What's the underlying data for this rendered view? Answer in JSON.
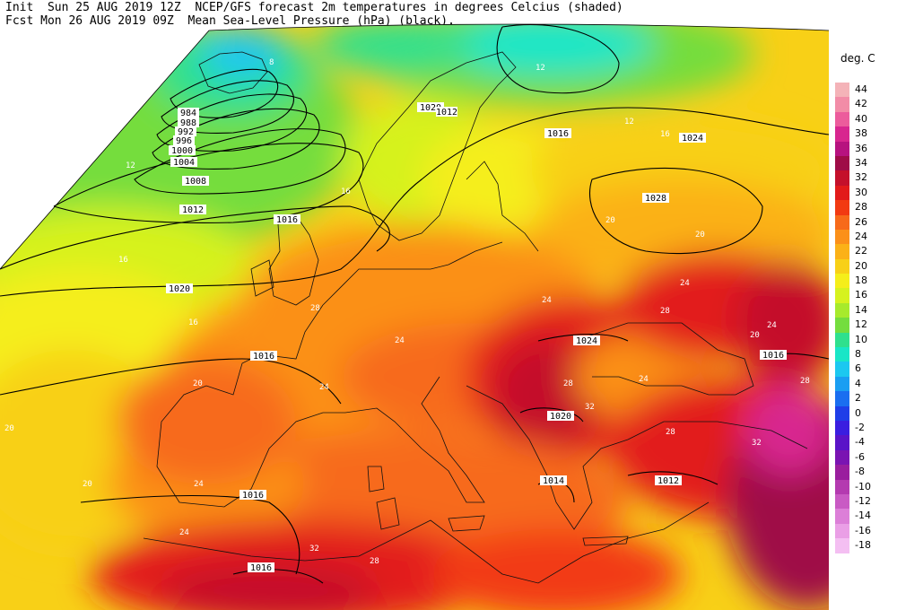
{
  "header": {
    "line1": "Init  Sun 25 AUG 2019 12Z  NCEP/GFS forecast 2m temperatures in degrees Celcius (shaded)",
    "line2": "Fcst Mon 26 AUG 2019 09Z  Mean Sea-Level Pressure (hPa) (black)."
  },
  "colorbar": {
    "unit": "deg. C",
    "entries": [
      {
        "label": "44",
        "color": "#f4b3b8"
      },
      {
        "label": "42",
        "color": "#f28ca7"
      },
      {
        "label": "40",
        "color": "#ec5c9c"
      },
      {
        "label": "38",
        "color": "#d8268f"
      },
      {
        "label": "36",
        "color": "#b7127f"
      },
      {
        "label": "34",
        "color": "#9f0c47"
      },
      {
        "label": "32",
        "color": "#c4102b"
      },
      {
        "label": "30",
        "color": "#e21a1a"
      },
      {
        "label": "28",
        "color": "#f23a12"
      },
      {
        "label": "26",
        "color": "#f76a1a"
      },
      {
        "label": "24",
        "color": "#fb9019"
      },
      {
        "label": "22",
        "color": "#fbb117"
      },
      {
        "label": "20",
        "color": "#f8d017"
      },
      {
        "label": "18",
        "color": "#f5ee1a"
      },
      {
        "label": "16",
        "color": "#d6f21f"
      },
      {
        "label": "14",
        "color": "#a7ea2c"
      },
      {
        "label": "12",
        "color": "#74dd3e"
      },
      {
        "label": "10",
        "color": "#2fe08e"
      },
      {
        "label": "8",
        "color": "#19e6c7"
      },
      {
        "label": "6",
        "color": "#1cc8f0"
      },
      {
        "label": "4",
        "color": "#1a9ef2"
      },
      {
        "label": "2",
        "color": "#1a6ef0"
      },
      {
        "label": "0",
        "color": "#1f3ee8"
      },
      {
        "label": "-2",
        "color": "#3a1ee0"
      },
      {
        "label": "-4",
        "color": "#5a14c8"
      },
      {
        "label": "-6",
        "color": "#7a14b2"
      },
      {
        "label": "-8",
        "color": "#9a1e9e"
      },
      {
        "label": "-10",
        "color": "#b43ab0"
      },
      {
        "label": "-12",
        "color": "#c95ac4"
      },
      {
        "label": "-14",
        "color": "#dc7fd8"
      },
      {
        "label": "-16",
        "color": "#ea9fe6"
      },
      {
        "label": "-18",
        "color": "#f4bff2"
      }
    ]
  },
  "map": {
    "pressure_labels": [
      "984",
      "988",
      "992",
      "996",
      "1000",
      "1004",
      "1008",
      "1012",
      "1016",
      "1020",
      "1020",
      "1016",
      "1024",
      "1028",
      "1024",
      "1016",
      "1016",
      "1020",
      "1016",
      "1012",
      "1014",
      "1012",
      "1016"
    ],
    "temperature_labels": [
      "8",
      "12",
      "12",
      "12",
      "16",
      "16",
      "16",
      "16",
      "20",
      "20",
      "20",
      "20",
      "20",
      "20",
      "24",
      "24",
      "24",
      "24",
      "24",
      "24",
      "24",
      "24",
      "28",
      "28",
      "28",
      "28",
      "28",
      "28",
      "32",
      "32",
      "32"
    ]
  }
}
